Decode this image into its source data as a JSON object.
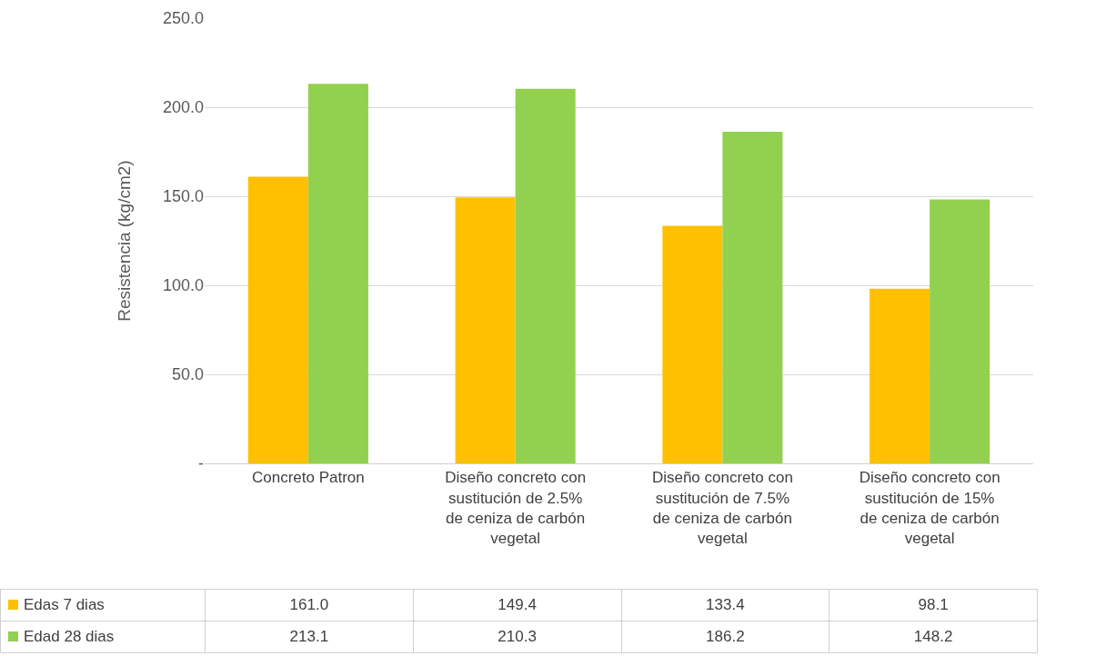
{
  "chart_data": {
    "type": "bar",
    "ylabel": "Resistencia (kg/cm2)",
    "categories": [
      "Concreto Patron",
      "Diseño concreto con sustitución de 2.5% de ceniza de carbón vegetal",
      "Diseño concreto con sustitución de 7.5% de ceniza de carbón vegetal",
      "Diseño concreto con sustitución de 15% de ceniza de carbón vegetal"
    ],
    "series": [
      {
        "name": "Edas 7 dias",
        "color": "#ffc000",
        "values": [
          161.0,
          149.4,
          133.4,
          98.1
        ],
        "value_labels": [
          "161.0",
          "149.4",
          "133.4",
          "98.1"
        ]
      },
      {
        "name": "Edad 28 dias",
        "color": "#92d050",
        "values": [
          213.1,
          210.3,
          186.2,
          148.2
        ],
        "value_labels": [
          "213.1",
          "210.3",
          "186.2",
          "148.2"
        ]
      }
    ],
    "ylim": [
      0,
      250
    ],
    "yticks": [
      {
        "value": 0,
        "label": "-"
      },
      {
        "value": 50,
        "label": "50.0"
      },
      {
        "value": 100,
        "label": "100.0"
      },
      {
        "value": 150,
        "label": "150.0"
      },
      {
        "value": 200,
        "label": "200.0"
      },
      {
        "value": 250,
        "label": "250.0"
      }
    ],
    "grid": "y",
    "legend": "bottom left"
  }
}
